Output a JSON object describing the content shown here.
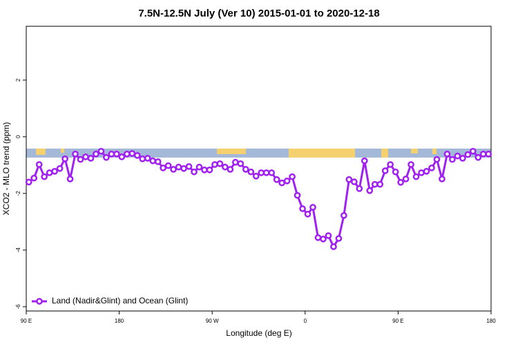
{
  "chart_data": {
    "type": "line",
    "title": "7.5N-12.5N July (Ver 10)   2015-01-01 to 2020-12-18",
    "x_label": "Longitude (deg E)",
    "y_label": "XCO2 - MLO trend (ppm)",
    "xlim": [
      90,
      540
    ],
    "xticks": [
      {
        "value": 90,
        "label": "90 E"
      },
      {
        "value": 180,
        "label": "180"
      },
      {
        "value": 270,
        "label": "90 W"
      },
      {
        "value": 360,
        "label": "0"
      },
      {
        "value": 450,
        "label": "90 E"
      },
      {
        "value": 540,
        "label": "180"
      }
    ],
    "ylim": [
      -6.15,
      3.9
    ],
    "yticks": [
      -6,
      -4,
      -2,
      0,
      2
    ],
    "legend": "bottom-left",
    "x": [
      92.5,
      97.5,
      102.5,
      107.5,
      112.5,
      117.5,
      122.5,
      127.5,
      132.5,
      137.5,
      142.5,
      147.5,
      152.5,
      157.5,
      162.5,
      167.5,
      172.5,
      177.5,
      182.5,
      187.5,
      192.5,
      197.5,
      202.5,
      207.5,
      212.5,
      217.5,
      222.5,
      227.5,
      232.5,
      237.5,
      242.5,
      247.5,
      252.5,
      257.5,
      262.5,
      267.5,
      272.5,
      277.5,
      282.5,
      287.5,
      292.5,
      297.5,
      302.5,
      307.5,
      312.5,
      317.5,
      322.5,
      327.5,
      332.5,
      337.5,
      342.5,
      347.5,
      352.5,
      357.5,
      362.5,
      367.5,
      372.5,
      377.5,
      382.5,
      387.5,
      392.5,
      397.5,
      402.5,
      407.5,
      412.5,
      417.5,
      422.5,
      427.5,
      432.5,
      437.5,
      442.5,
      447.5,
      452.5,
      457.5,
      462.5,
      467.5,
      472.5,
      477.5,
      482.5,
      487.5,
      492.5,
      497.5,
      502.5,
      507.5,
      512.5,
      517.5,
      522.5,
      527.5,
      532.5,
      537.5
    ],
    "series": [
      {
        "name": "Land (Nadir&Glint) and Ocean (Glint)",
        "color": "#a020f0",
        "values": [
          -1.6,
          -1.46,
          -0.98,
          -1.41,
          -1.27,
          -1.22,
          -1.12,
          -0.78,
          -1.49,
          -0.61,
          -0.8,
          -0.71,
          -0.76,
          -0.61,
          -0.51,
          -0.73,
          -0.61,
          -0.61,
          -0.71,
          -0.61,
          -0.59,
          -0.66,
          -0.78,
          -0.76,
          -0.85,
          -0.88,
          -1.1,
          -1.02,
          -1.15,
          -1.07,
          -1.12,
          -1.05,
          -1.24,
          -1.07,
          -1.17,
          -1.17,
          -0.98,
          -0.95,
          -1.07,
          -1.15,
          -0.9,
          -0.95,
          -1.15,
          -1.24,
          -1.39,
          -1.27,
          -1.27,
          -1.27,
          -1.51,
          -1.63,
          -1.56,
          -1.41,
          -2.07,
          -2.54,
          -2.73,
          -2.49,
          -3.56,
          -3.61,
          -3.49,
          -3.88,
          -3.59,
          -2.78,
          -1.51,
          -1.59,
          -1.83,
          -0.85,
          -1.9,
          -1.68,
          -1.68,
          -1.2,
          -0.98,
          -1.24,
          -1.61,
          -1.49,
          -0.98,
          -1.41,
          -1.27,
          -1.22,
          -1.1,
          -0.8,
          -1.49,
          -0.61,
          -0.8,
          -0.68,
          -0.76,
          -0.63,
          -0.51,
          -0.73,
          -0.61,
          -0.61
        ]
      }
    ]
  }
}
